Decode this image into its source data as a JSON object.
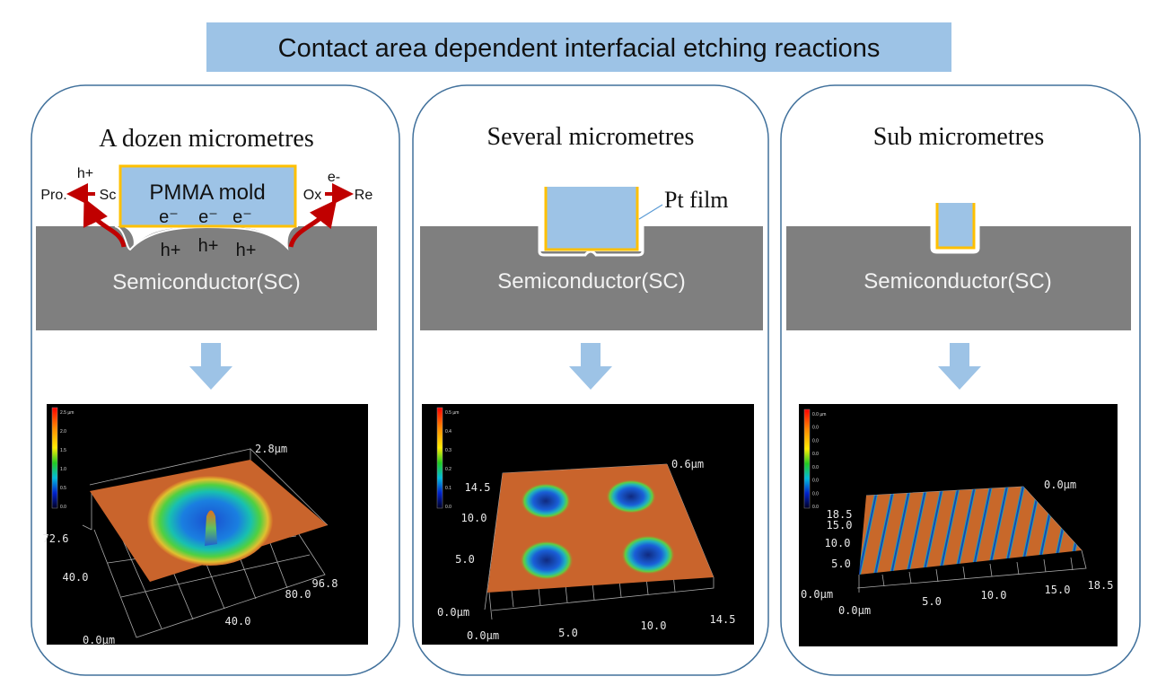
{
  "title": "Contact area dependent interfacial etching reactions",
  "colors": {
    "title_bg": "#9DC3E6",
    "mold": "#9DC3E6",
    "film": "#FFC000",
    "semiconductor": "#7F7F7F",
    "arrow_red": "#C00000",
    "down_arrow": "#9DC3E6",
    "panel_border": "#41719C"
  },
  "panels": [
    {
      "heading": "A dozen micrometres",
      "mold_label": "PMMA mold",
      "substrate_label": "Semiconductor(SC)",
      "left_reaction": {
        "top": "h+",
        "from": "Sc",
        "to": "Pro."
      },
      "right_reaction": {
        "top": "e-",
        "from": "Ox",
        "to": "Re"
      },
      "electrons": [
        "e⁻",
        "e⁻",
        "e⁻"
      ],
      "holes": [
        "h+",
        "h+",
        "h+"
      ],
      "plot": {
        "z_max": "2.8µm",
        "colorbar": [
          "2.5 µm",
          "2.0",
          "1.5",
          "1.0",
          "0.5",
          "0.0"
        ],
        "y_ticks": [
          "72.6",
          "40.0"
        ],
        "origin": "0.0µm",
        "x_ticks": [
          "40.0",
          "80.0",
          "96.8"
        ]
      }
    },
    {
      "heading": "Several micrometres",
      "film_label": "Pt film",
      "substrate_label": "Semiconductor(SC)",
      "plot": {
        "z_max": "0.6µm",
        "colorbar": [
          "0.5 µm",
          "0.4",
          "0.3",
          "0.2",
          "0.1",
          "0.0"
        ],
        "y_ticks": [
          "14.5",
          "10.0",
          "5.0"
        ],
        "origin_y": "0.0µm",
        "origin_x": "0.0µm",
        "x_ticks": [
          "5.0",
          "10.0",
          "14.5"
        ]
      }
    },
    {
      "heading": "Sub micrometres",
      "substrate_label": "Semiconductor(SC)",
      "plot": {
        "z_max": "0.0µm",
        "colorbar": [
          "0.0 µm",
          "0.0",
          "0.0",
          "0.0",
          "0.0",
          "0.0",
          "0.0",
          "0.0"
        ],
        "y_ticks": [
          "18.5",
          "15.0",
          "10.0",
          "5.0"
        ],
        "origin_y": "0.0µm",
        "origin_x": "0.0µm",
        "x_ticks": [
          "5.0",
          "10.0",
          "15.0",
          "18.5"
        ]
      }
    }
  ]
}
